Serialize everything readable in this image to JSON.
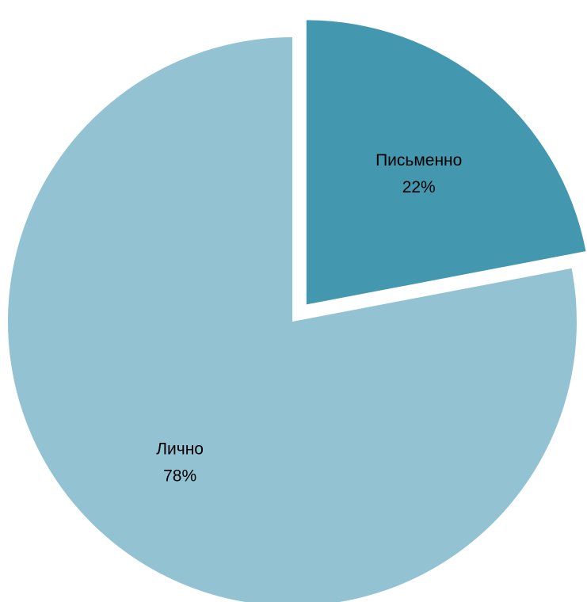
{
  "chart_data": {
    "type": "pie",
    "title": "",
    "slices": [
      {
        "name": "Письменно",
        "value": 22,
        "value_label": "22%",
        "color": "#4398AF",
        "exploded": true
      },
      {
        "name": "Лично",
        "value": 78,
        "value_label": "78%",
        "color": "#93C3D3",
        "exploded": false
      }
    ],
    "legend": "none",
    "data_labels": "inside"
  }
}
